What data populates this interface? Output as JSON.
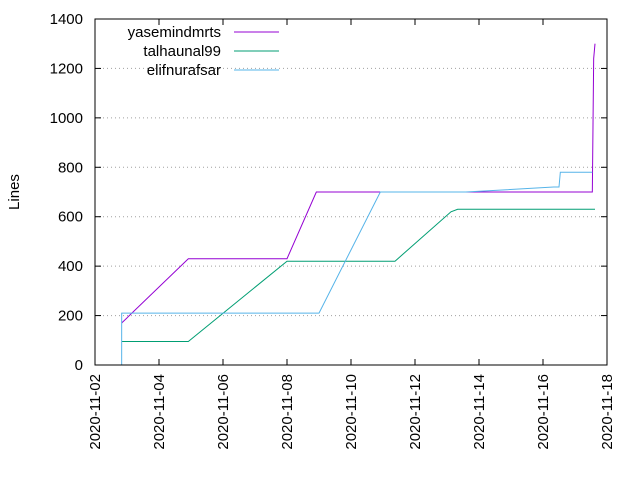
{
  "chart_data": {
    "type": "line",
    "title": "",
    "xlabel": "",
    "ylabel": "Lines",
    "x_type": "date",
    "xlim": [
      "2020-11-02",
      "2020-11-18"
    ],
    "ylim": [
      0,
      1400
    ],
    "x_ticks": [
      "2020-11-02",
      "2020-11-04",
      "2020-11-06",
      "2020-11-08",
      "2020-11-10",
      "2020-11-12",
      "2020-11-14",
      "2020-11-16",
      "2020-11-18"
    ],
    "y_ticks": [
      0,
      200,
      400,
      600,
      800,
      1000,
      1200,
      1400
    ],
    "grid": true,
    "legend_position": "top-left",
    "series": [
      {
        "name": "yasemindmrts",
        "color": "#9400d3",
        "points": [
          [
            "2020-11-02 20:00",
            170
          ],
          [
            "2020-11-04 22:00",
            430
          ],
          [
            "2020-11-08 00:00",
            430
          ],
          [
            "2020-11-08 22:00",
            700
          ],
          [
            "2020-11-10 22:00",
            700
          ],
          [
            "2020-11-17 13:00",
            700
          ],
          [
            "2020-11-17 14:00",
            1240
          ],
          [
            "2020-11-17 15:00",
            1300
          ]
        ]
      },
      {
        "name": "talhaunal99",
        "color": "#009e73",
        "points": [
          [
            "2020-11-02 20:00",
            95
          ],
          [
            "2020-11-04 22:00",
            95
          ],
          [
            "2020-11-08 00:00",
            420
          ],
          [
            "2020-11-11 09:00",
            420
          ],
          [
            "2020-11-13 03:00",
            620
          ],
          [
            "2020-11-13 08:00",
            630
          ],
          [
            "2020-11-17 15:00",
            630
          ]
        ]
      },
      {
        "name": "elifnurafsar",
        "color": "#56b4e9",
        "points": [
          [
            "2020-11-02 20:00",
            0
          ],
          [
            "2020-11-02 20:00",
            210
          ],
          [
            "2020-11-09 00:00",
            210
          ],
          [
            "2020-11-10 22:00",
            700
          ],
          [
            "2020-11-13 14:00",
            700
          ],
          [
            "2020-11-16 08:00",
            720
          ],
          [
            "2020-11-16 12:00",
            720
          ],
          [
            "2020-11-16 13:00",
            780
          ],
          [
            "2020-11-17 13:00",
            780
          ]
        ]
      }
    ]
  }
}
